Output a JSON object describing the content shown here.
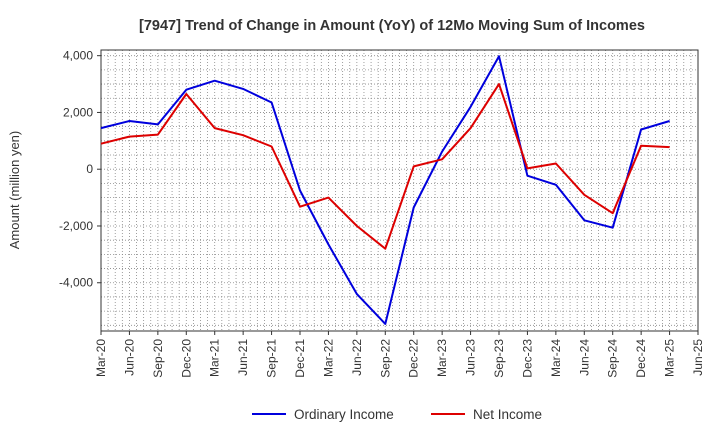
{
  "chart_data": {
    "type": "line",
    "title": "[7947]  Trend of Change in Amount (YoY) of 12Mo Moving Sum of Incomes",
    "xlabel": "",
    "ylabel": "Amount (million yen)",
    "ylim": [
      -5700,
      4200
    ],
    "yticks": [
      4000,
      2000,
      0,
      -2000,
      -4000
    ],
    "ytick_labels": [
      "4,000",
      "2,000",
      "0",
      "-2,000",
      "-4,000"
    ],
    "x": [
      "Mar-20",
      "Jun-20",
      "Sep-20",
      "Dec-20",
      "Mar-21",
      "Jun-21",
      "Sep-21",
      "Dec-21",
      "Mar-22",
      "Jun-22",
      "Sep-22",
      "Dec-22",
      "Mar-23",
      "Jun-23",
      "Sep-23",
      "Dec-23",
      "Mar-24",
      "Jun-24",
      "Sep-24",
      "Dec-24",
      "Mar-25",
      "Jun-25"
    ],
    "grid": true,
    "legend_position": "bottom",
    "series": [
      {
        "name": "Ordinary Income",
        "color": "#0000dd",
        "values": [
          1450,
          1700,
          1580,
          2800,
          3120,
          2830,
          2350,
          -750,
          -2650,
          -4400,
          -5450,
          -1350,
          620,
          2200,
          3980,
          -230,
          -550,
          -1800,
          -2060,
          1400,
          1700,
          null
        ]
      },
      {
        "name": "Net Income",
        "color": "#dd0000",
        "values": [
          900,
          1150,
          1220,
          2650,
          1450,
          1200,
          800,
          -1320,
          -1000,
          -2000,
          -2800,
          100,
          350,
          1450,
          3000,
          30,
          200,
          -900,
          -1550,
          830,
          780,
          null
        ]
      }
    ]
  }
}
